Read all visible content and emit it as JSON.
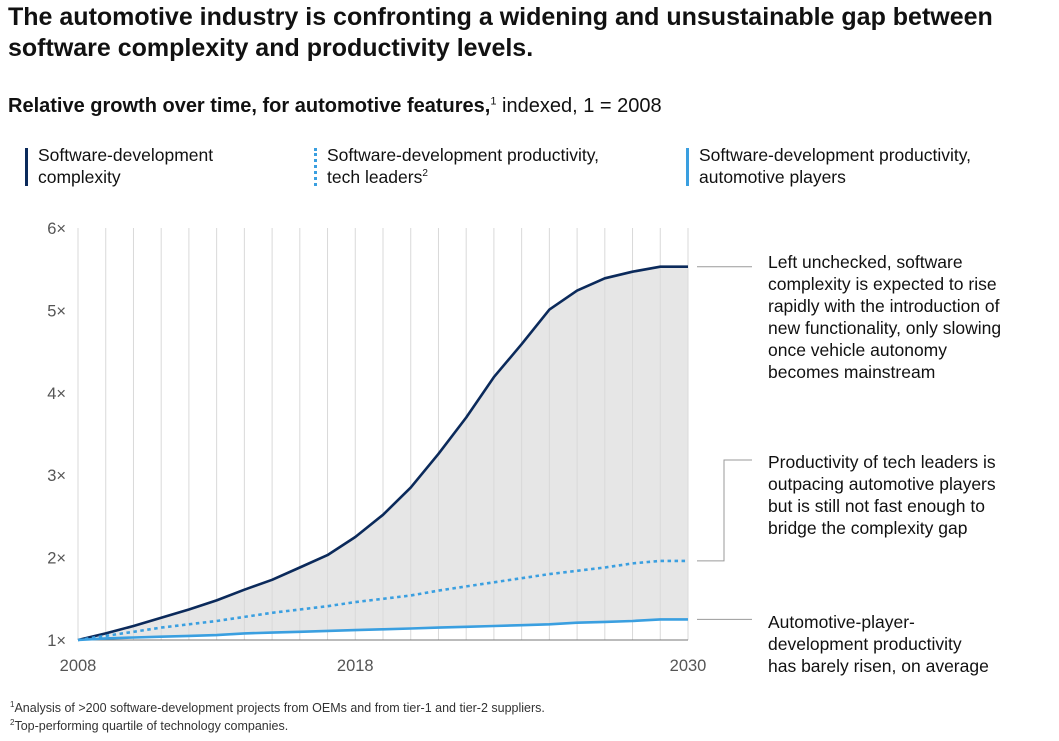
{
  "header": {
    "title": "The automotive industry is confronting a widening and unsustainable gap between software complexity and productivity levels.",
    "subtitle_bold": "Relative growth over time, for automotive features,",
    "subtitle_sup": "1",
    "subtitle_rest": " indexed, 1 = 2008"
  },
  "legend": [
    {
      "line1": "Software-development",
      "line2": "complexity",
      "sup": "",
      "color": "#0b2a5b",
      "style": "solid"
    },
    {
      "line1": "Software-development productivity,",
      "line2": "tech leaders",
      "sup": "2",
      "color": "#3a9fe0",
      "style": "dotted"
    },
    {
      "line1": "Software-development productivity,",
      "line2": "automotive players",
      "sup": "",
      "color": "#3a9fe0",
      "style": "solid"
    }
  ],
  "annotations": [
    {
      "lines": [
        "Left unchecked, software",
        "complexity is expected to rise",
        "rapidly with the introduction of",
        "new functionality, only slowing",
        "once vehicle autonomy",
        "becomes mainstream"
      ]
    },
    {
      "lines": [
        "Productivity of tech leaders is",
        "outpacing automotive players",
        "but is still not fast enough to",
        "bridge the complexity gap"
      ]
    },
    {
      "lines": [
        "Automotive-player-",
        "development productivity",
        "has barely risen, on average"
      ]
    }
  ],
  "footnotes": [
    {
      "sup": "1",
      "text": "Analysis of >200 software-development projects from OEMs and from tier-1 and tier-2 suppliers."
    },
    {
      "sup": "2",
      "text": "Top-performing quartile of technology companies."
    }
  ],
  "chart_data": {
    "type": "line",
    "x_ticks": [
      2008,
      2018,
      2030
    ],
    "y_ticks": [
      "1×",
      "2×",
      "3×",
      "4×",
      "5×",
      "6×"
    ],
    "xlim": [
      2008,
      2030
    ],
    "ylim": [
      1,
      6
    ],
    "grid": "vertical, yearly",
    "shaded_gap": {
      "between": [
        "Software-development complexity",
        "Software-development productivity, automotive players"
      ],
      "color": "#e6e6e6"
    },
    "x": [
      2008,
      2009,
      2010,
      2011,
      2012,
      2013,
      2014,
      2015,
      2016,
      2017,
      2018,
      2019,
      2020,
      2021,
      2022,
      2023,
      2024,
      2025,
      2026,
      2027,
      2028,
      2029,
      2030
    ],
    "series": [
      {
        "name": "Software-development complexity",
        "color": "#0b2a5b",
        "style": "solid",
        "values": [
          1.0,
          1.08,
          1.17,
          1.27,
          1.37,
          1.48,
          1.61,
          1.73,
          1.88,
          2.03,
          2.25,
          2.52,
          2.85,
          3.26,
          3.7,
          4.19,
          4.59,
          5.01,
          5.24,
          5.39,
          5.47,
          5.53,
          5.53
        ]
      },
      {
        "name": "Software-development productivity, tech leaders",
        "color": "#3a9fe0",
        "style": "dotted",
        "values": [
          1.0,
          1.05,
          1.1,
          1.15,
          1.19,
          1.23,
          1.28,
          1.33,
          1.37,
          1.41,
          1.46,
          1.5,
          1.54,
          1.6,
          1.65,
          1.7,
          1.75,
          1.8,
          1.84,
          1.88,
          1.93,
          1.96,
          1.96
        ]
      },
      {
        "name": "Software-development productivity, automotive players",
        "color": "#3a9fe0",
        "style": "solid",
        "values": [
          1.0,
          1.02,
          1.03,
          1.04,
          1.05,
          1.06,
          1.08,
          1.09,
          1.1,
          1.11,
          1.12,
          1.13,
          1.14,
          1.15,
          1.16,
          1.17,
          1.18,
          1.19,
          1.21,
          1.22,
          1.23,
          1.25,
          1.25
        ]
      }
    ]
  }
}
